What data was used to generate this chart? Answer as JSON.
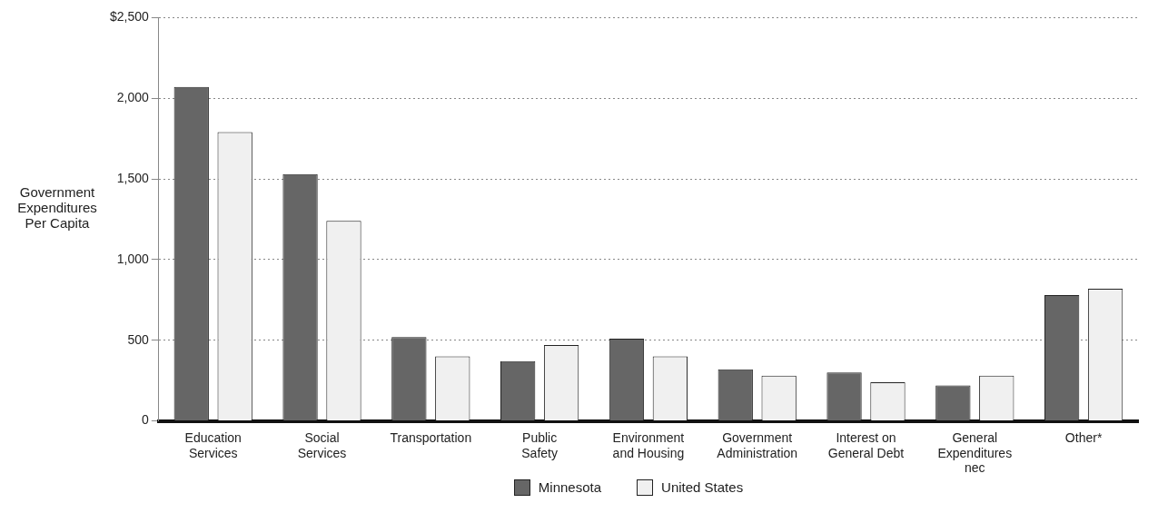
{
  "chart_data": {
    "type": "bar",
    "ylabel": "Government Expenditures Per Capita",
    "categories": [
      "Education Services",
      "Social Services",
      "Transportation",
      "Public Safety",
      "Environment and Housing",
      "Government Administration",
      "Interest on General Debt",
      "General Expenditures nec",
      "Other*"
    ],
    "series": [
      {
        "name": "Minnesota",
        "color": "#666666",
        "values": [
          2070,
          1530,
          520,
          370,
          510,
          320,
          300,
          220,
          780
        ]
      },
      {
        "name": "United States",
        "color": "#f0f0f0",
        "values": [
          1790,
          1240,
          400,
          470,
          400,
          280,
          240,
          280,
          820
        ]
      }
    ],
    "ylim": [
      0,
      2500
    ],
    "yticks": [
      {
        "value": 0,
        "label": "0"
      },
      {
        "value": 500,
        "label": "500"
      },
      {
        "value": 1000,
        "label": "1,000"
      },
      {
        "value": 1500,
        "label": "1,500"
      },
      {
        "value": 2000,
        "label": "2,000"
      },
      {
        "value": 2500,
        "label": "$2,500"
      }
    ],
    "grid": "y",
    "legend": "bottom"
  }
}
